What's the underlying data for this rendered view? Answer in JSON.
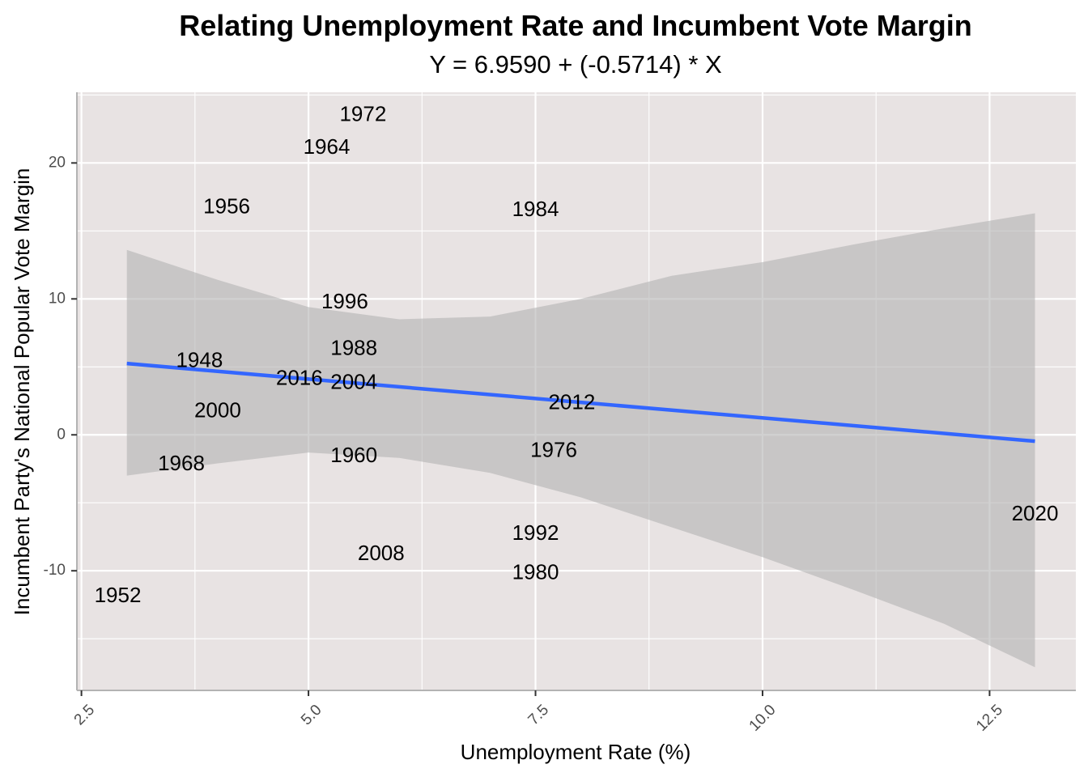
{
  "chart_data": {
    "type": "scatter",
    "title": "Relating Unemployment Rate and Incumbent Vote Margin",
    "subtitle": "Y = 6.9590 + (-0.5714) * X",
    "xlabel": "Unemployment Rate (%)",
    "ylabel": "Incumbent Party's National Popular Vote Margin",
    "xlim": [
      2.45,
      13.45
    ],
    "ylim": [
      -18.8,
      25.2
    ],
    "x_ticks": [
      2.5,
      5.0,
      7.5,
      10.0,
      12.5
    ],
    "x_tick_labels": [
      "2.5",
      "5.0",
      "7.5",
      "10.0",
      "12.5"
    ],
    "y_ticks": [
      -10,
      0,
      10,
      20
    ],
    "y_tick_labels": [
      "-10",
      "0",
      "10",
      "20"
    ],
    "grid": true,
    "points": [
      {
        "label": "1948",
        "x": 3.8,
        "y": 5.4
      },
      {
        "label": "1952",
        "x": 2.9,
        "y": -11.9
      },
      {
        "label": "1956",
        "x": 4.1,
        "y": 16.7
      },
      {
        "label": "1960",
        "x": 5.5,
        "y": -1.6
      },
      {
        "label": "1964",
        "x": 5.2,
        "y": 21.1
      },
      {
        "label": "1968",
        "x": 3.6,
        "y": -2.2
      },
      {
        "label": "1972",
        "x": 5.6,
        "y": 23.5
      },
      {
        "label": "1976",
        "x": 7.7,
        "y": -1.2
      },
      {
        "label": "1980",
        "x": 7.5,
        "y": -10.2
      },
      {
        "label": "1984",
        "x": 7.5,
        "y": 16.5
      },
      {
        "label": "1988",
        "x": 5.5,
        "y": 6.3
      },
      {
        "label": "1992",
        "x": 7.5,
        "y": -7.3
      },
      {
        "label": "1996",
        "x": 5.4,
        "y": 9.7
      },
      {
        "label": "2000",
        "x": 4.0,
        "y": 1.7
      },
      {
        "label": "2004",
        "x": 5.5,
        "y": 3.8
      },
      {
        "label": "2008",
        "x": 5.8,
        "y": -8.8
      },
      {
        "label": "2012",
        "x": 7.9,
        "y": 2.3
      },
      {
        "label": "2016",
        "x": 4.9,
        "y": 4.1
      },
      {
        "label": "2020",
        "x": 13.0,
        "y": -5.9
      }
    ],
    "fit_line": {
      "type": "linear",
      "intercept": 6.959,
      "slope": -0.5714,
      "x_start": 3.0,
      "x_end": 13.0,
      "color": "#3366FF"
    },
    "confidence_band": {
      "upper": [
        [
          3.0,
          13.6
        ],
        [
          4.0,
          11.4
        ],
        [
          5.0,
          9.4
        ],
        [
          6.0,
          8.5
        ],
        [
          7.0,
          8.7
        ],
        [
          8.0,
          10.0
        ],
        [
          9.0,
          11.7
        ],
        [
          10.0,
          12.7
        ],
        [
          11.0,
          14.0
        ],
        [
          12.0,
          15.2
        ],
        [
          13.0,
          16.3
        ]
      ],
      "lower": [
        [
          3.0,
          -3.0
        ],
        [
          4.0,
          -2.1
        ],
        [
          5.0,
          -1.3
        ],
        [
          6.0,
          -1.7
        ],
        [
          7.0,
          -2.8
        ],
        [
          8.0,
          -4.6
        ],
        [
          9.0,
          -6.8
        ],
        [
          10.0,
          -9.0
        ],
        [
          11.0,
          -11.4
        ],
        [
          12.0,
          -13.9
        ],
        [
          13.0,
          -17.1
        ]
      ],
      "color": "#B3B3B3"
    },
    "panel_background": "#E8E3E3",
    "grid_color": "#FFFFFF",
    "text_color": "#000000",
    "axis_color": "#B3B3B3"
  }
}
